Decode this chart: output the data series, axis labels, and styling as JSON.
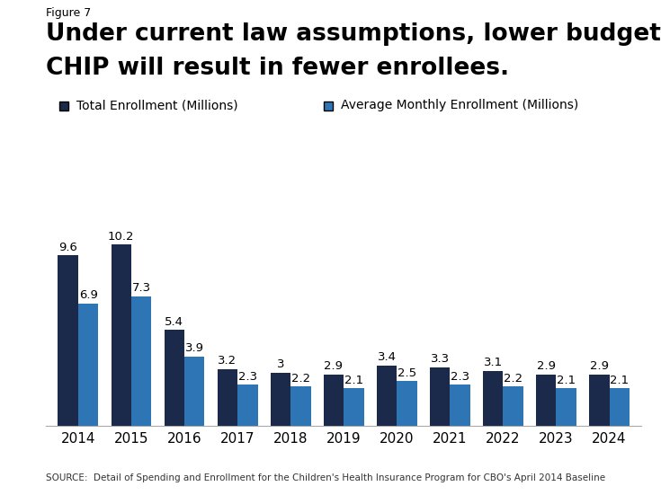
{
  "figure_label": "Figure 7",
  "title_line1": "Under current law assumptions, lower budget authority for",
  "title_line2": "CHIP will result in fewer enrollees.",
  "years": [
    "2014",
    "2015",
    "2016",
    "2017",
    "2018",
    "2019",
    "2020",
    "2021",
    "2022",
    "2023",
    "2024"
  ],
  "total_enrollment": [
    9.6,
    10.2,
    5.4,
    3.2,
    3.0,
    2.9,
    3.4,
    3.3,
    3.1,
    2.9,
    2.9
  ],
  "avg_monthly_enrollment": [
    6.9,
    7.3,
    3.9,
    2.3,
    2.2,
    2.1,
    2.5,
    2.3,
    2.2,
    2.1,
    2.1
  ],
  "total_labels": [
    "9.6",
    "10.2",
    "5.4",
    "3.2",
    "3",
    "2.9",
    "3.4",
    "3.3",
    "3.1",
    "2.9",
    "2.9"
  ],
  "avg_labels": [
    "6.9",
    "7.3",
    "3.9",
    "2.3",
    "2.2",
    "2.1",
    "2.5",
    "2.3",
    "2.2",
    "2.1",
    "2.1"
  ],
  "color_total": "#1b2a4a",
  "color_avg": "#2e75b6",
  "legend_total": "Total Enrollment (Millions)",
  "legend_avg": "Average Monthly Enrollment (Millions)",
  "source_text": "SOURCE:  Detail of Spending and Enrollment for the Children's Health Insurance Program for CBO's April 2014 Baseline",
  "ylim": [
    0,
    12.0
  ],
  "bar_width": 0.38,
  "background_color": "#ffffff"
}
